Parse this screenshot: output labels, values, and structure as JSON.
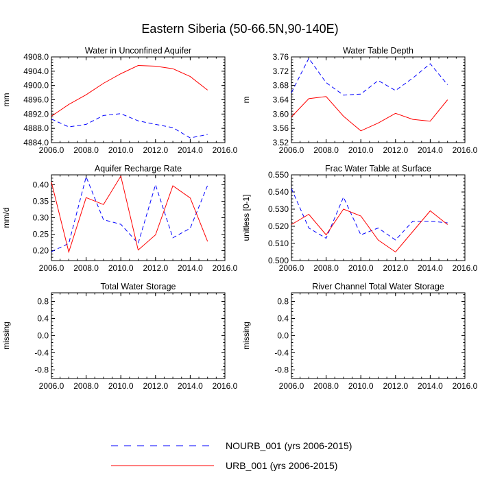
{
  "figure_title": "Eastern Siberia (50-66.5N,90-140E)",
  "legend": [
    {
      "label": "NOURB_001 (yrs 2006-2015)",
      "color": "#0000ff",
      "dash": "dashed"
    },
    {
      "label": "URB_001 (yrs 2006-2015)",
      "color": "#ff0000",
      "dash": "solid"
    }
  ],
  "chart_data": [
    {
      "type": "line",
      "title": "Water in Unconfined Aquifer",
      "ylabel": "mm",
      "xlim": [
        2006,
        2016
      ],
      "ylim": [
        4884,
        4908
      ],
      "xticks": [
        "2006.0",
        "2008.0",
        "2010.0",
        "2012.0",
        "2014.0",
        "2016.0"
      ],
      "yticks": [
        4884,
        4888,
        4892,
        4896,
        4900,
        4904,
        4908
      ],
      "ytick_labels": [
        "4884.0",
        "4888.0",
        "4892.0",
        "4896.0",
        "4900.0",
        "4904.0",
        "4908.0"
      ],
      "x": [
        2006,
        2007,
        2008,
        2009,
        2010,
        2011,
        2012,
        2013,
        2014,
        2015
      ],
      "series": [
        {
          "name": "NOURB_001 (yrs 2006-2015)",
          "values": [
            4890.6,
            4888.4,
            4889.1,
            4891.6,
            4892.1,
            4890.1,
            4889.1,
            4888.2,
            4885.3,
            4886.3
          ]
        },
        {
          "name": "URB_001 (yrs 2006-2015)",
          "values": [
            4891.4,
            4894.7,
            4897.4,
            4900.6,
            4903.3,
            4905.6,
            4905.4,
            4904.7,
            4902.5,
            4898.7
          ]
        }
      ]
    },
    {
      "type": "line",
      "title": "Water Table Depth",
      "ylabel": "m",
      "xlim": [
        2006,
        2016
      ],
      "ylim": [
        3.52,
        3.76
      ],
      "xticks": [
        "2006.0",
        "2008.0",
        "2010.0",
        "2012.0",
        "2014.0",
        "2016.0"
      ],
      "yticks": [
        3.52,
        3.56,
        3.6,
        3.64,
        3.68,
        3.72,
        3.76
      ],
      "ytick_labels": [
        "3.52",
        "3.56",
        "3.60",
        "3.64",
        "3.68",
        "3.72",
        "3.76"
      ],
      "x": [
        2006,
        2007,
        2008,
        2009,
        2010,
        2011,
        2012,
        2013,
        2014,
        2015
      ],
      "series": [
        {
          "name": "NOURB_001 (yrs 2006-2015)",
          "values": [
            3.66,
            3.756,
            3.688,
            3.653,
            3.656,
            3.694,
            3.666,
            3.701,
            3.741,
            3.682
          ]
        },
        {
          "name": "URB_001 (yrs 2006-2015)",
          "values": [
            3.592,
            3.643,
            3.649,
            3.594,
            3.553,
            3.575,
            3.602,
            3.585,
            3.58,
            3.64
          ]
        }
      ]
    },
    {
      "type": "line",
      "title": "Aquifer Recharge Rate",
      "ylabel": "mm/d",
      "xlim": [
        2006,
        2016
      ],
      "ylim": [
        0.17,
        0.43
      ],
      "xticks": [
        "2006.0",
        "2008.0",
        "2010.0",
        "2012.0",
        "2014.0",
        "2016.0"
      ],
      "yticks": [
        0.2,
        0.25,
        0.3,
        0.35,
        0.4
      ],
      "ytick_labels": [
        "0.20",
        "0.25",
        "0.30",
        "0.35",
        "0.40"
      ],
      "x": [
        2006,
        2007,
        2008,
        2009,
        2010,
        2011,
        2012,
        2013,
        2014,
        2015
      ],
      "series": [
        {
          "name": "NOURB_001 (yrs 2006-2015)",
          "values": [
            0.197,
            0.222,
            0.424,
            0.294,
            0.28,
            0.222,
            0.4,
            0.239,
            0.268,
            0.398
          ]
        },
        {
          "name": "URB_001 (yrs 2006-2015)",
          "values": [
            0.408,
            0.196,
            0.361,
            0.34,
            0.426,
            0.202,
            0.248,
            0.397,
            0.36,
            0.228
          ]
        }
      ]
    },
    {
      "type": "line",
      "title": "Frac Water Table at Surface",
      "ylabel": "unitless [0-1]",
      "xlim": [
        2006,
        2016
      ],
      "ylim": [
        0.5,
        0.55
      ],
      "xticks": [
        "2006.0",
        "2008.0",
        "2010.0",
        "2012.0",
        "2014.0",
        "2016.0"
      ],
      "yticks": [
        0.5,
        0.51,
        0.52,
        0.53,
        0.54,
        0.55
      ],
      "ytick_labels": [
        "0.500",
        "0.510",
        "0.520",
        "0.530",
        "0.540",
        "0.550"
      ],
      "x": [
        2006,
        2007,
        2008,
        2009,
        2010,
        2011,
        2012,
        2013,
        2014,
        2015
      ],
      "series": [
        {
          "name": "NOURB_001 (yrs 2006-2015)",
          "values": [
            0.542,
            0.519,
            0.513,
            0.537,
            0.515,
            0.519,
            0.512,
            0.523,
            0.523,
            0.522
          ]
        },
        {
          "name": "URB_001 (yrs 2006-2015)",
          "values": [
            0.521,
            0.527,
            0.515,
            0.53,
            0.526,
            0.512,
            0.505,
            0.517,
            0.529,
            0.521
          ]
        }
      ]
    },
    {
      "type": "line",
      "title": "Total Water Storage",
      "ylabel": "missing",
      "xlim": [
        2006,
        2016
      ],
      "ylim": [
        -1.0,
        1.0
      ],
      "xticks": [
        "2006.0",
        "2008.0",
        "2010.0",
        "2012.0",
        "2014.0",
        "2016.0"
      ],
      "yticks": [
        -0.8,
        -0.4,
        0.0,
        0.4,
        0.8
      ],
      "ytick_labels": [
        "-0.8",
        "-0.4",
        "0.0",
        "0.4",
        "0.8"
      ],
      "x": [],
      "series": []
    },
    {
      "type": "line",
      "title": "River Channel Total Water Storage",
      "ylabel": "missing",
      "xlim": [
        2006,
        2016
      ],
      "ylim": [
        -1.0,
        1.0
      ],
      "xticks": [
        "2006.0",
        "2008.0",
        "2010.0",
        "2012.0",
        "2014.0",
        "2016.0"
      ],
      "yticks": [
        -0.8,
        -0.4,
        0.0,
        0.4,
        0.8
      ],
      "ytick_labels": [
        "-0.8",
        "-0.4",
        "0.0",
        "0.4",
        "0.8"
      ],
      "x": [],
      "series": []
    }
  ]
}
